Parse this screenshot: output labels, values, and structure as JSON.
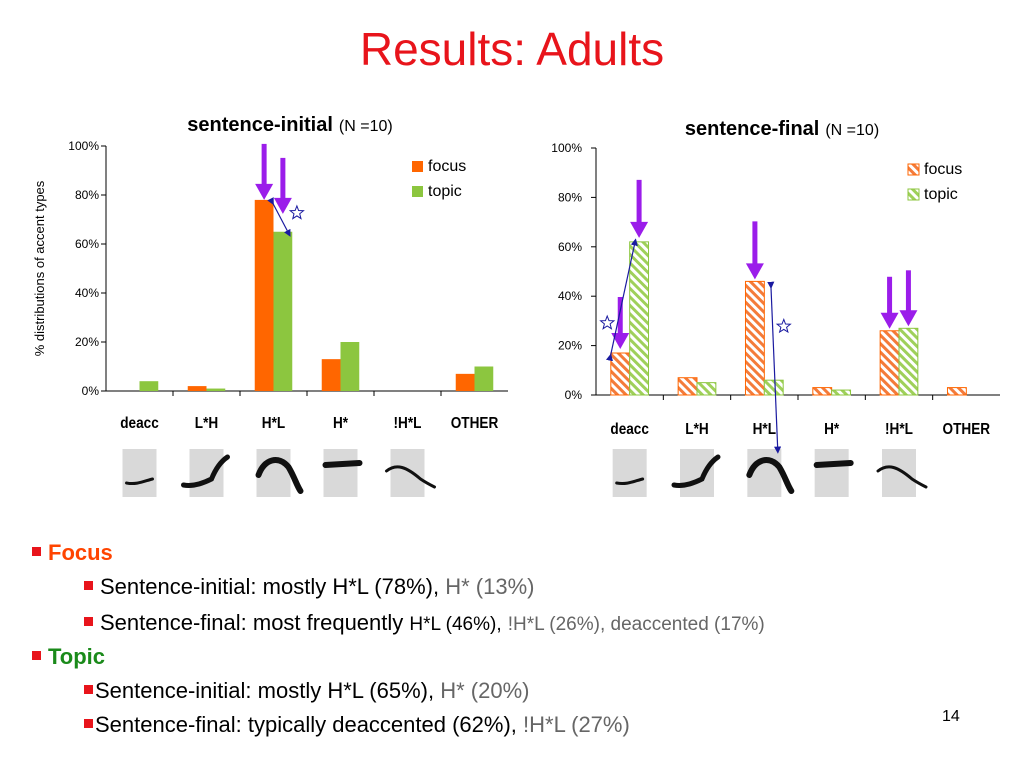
{
  "slide": {
    "title": "Results: Adults",
    "page_number": "14",
    "colors": {
      "focus": "#ff6600",
      "topic": "#8cc63f",
      "arrow": "#9b1dea",
      "title": "#e8141b",
      "bullet": "#e8141b",
      "focus_label": "#ff4400",
      "topic_label": "#1a8a1a",
      "contour_box": "#d9d9d9"
    }
  },
  "chart_data": [
    {
      "type": "bar",
      "title": "sentence-initial",
      "subtitle": "(N =10)",
      "ylabel": "% distributions of accent types",
      "xlabel": "",
      "ylim": [
        0,
        100
      ],
      "yticks": [
        "0%",
        "20%",
        "40%",
        "60%",
        "80%",
        "100%"
      ],
      "categories": [
        "deacc",
        "L*H",
        "H*L",
        "H*",
        "!H*L",
        "OTHER"
      ],
      "legend_position": "top-right",
      "pattern": "solid",
      "series": [
        {
          "name": "focus",
          "values": [
            0,
            2,
            78,
            13,
            0,
            7
          ]
        },
        {
          "name": "topic",
          "values": [
            4,
            1,
            65,
            20,
            0,
            10
          ]
        }
      ],
      "highlight_arrows": [
        "H*L"
      ],
      "star_markers": [
        "H*L"
      ]
    },
    {
      "type": "bar",
      "title": "sentence-final",
      "subtitle": "(N =10)",
      "ylabel": "",
      "xlabel": "",
      "ylim": [
        0,
        100
      ],
      "yticks": [
        "0%",
        "20%",
        "40%",
        "60%",
        "80%",
        "100%"
      ],
      "categories": [
        "deacc",
        "L*H",
        "H*L",
        "H*",
        "!H*L",
        "OTHER"
      ],
      "legend_position": "top-right",
      "pattern": "hatched",
      "series": [
        {
          "name": "focus",
          "values": [
            17,
            7,
            46,
            3,
            26,
            3
          ]
        },
        {
          "name": "topic",
          "values": [
            62,
            5,
            6,
            2,
            27,
            0
          ]
        }
      ],
      "highlight_arrows": [
        "deacc",
        "H*L",
        "!H*L"
      ],
      "star_markers": [
        "deacc",
        "H*L"
      ]
    }
  ],
  "bullets": {
    "focus_label": "Focus",
    "focus_initial_main": "Sentence-initial: mostly H*L (78%),",
    "focus_initial_minor": "H* (13%)",
    "focus_final_main": "Sentence-final: most frequently",
    "focus_final_mid": "H*L (46%),",
    "focus_final_minor": "!H*L (26%), deaccented (17%)",
    "topic_label": "Topic",
    "topic_initial_main": "Sentence-initial: mostly H*L (65%),",
    "topic_initial_minor": "H* (20%)",
    "topic_final_main": "Sentence-final: typically deaccented (62%),",
    "topic_final_minor": "!H*L (27%)"
  }
}
